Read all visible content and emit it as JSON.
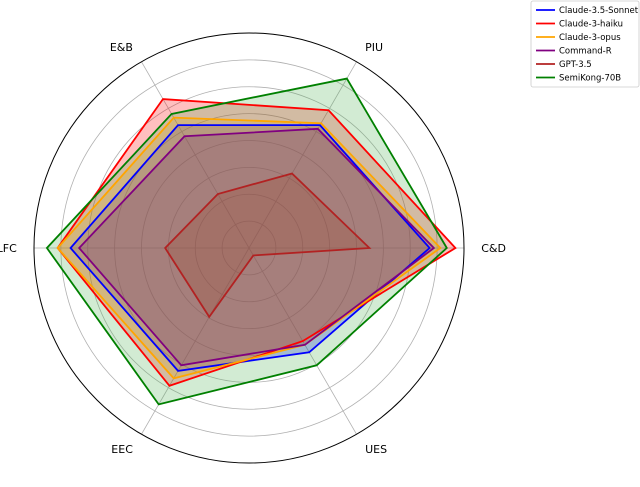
{
  "chart_data": {
    "type": "radar",
    "axes": [
      "C&D",
      "PIU",
      "E&B",
      "LFC",
      "EEC",
      "UES"
    ],
    "rmax": 1.0,
    "grid": true,
    "legend_position": "top-right",
    "series": [
      {
        "name": "Claude-3.5-Sonnet",
        "color": "#0000ff",
        "values": [
          0.84,
          0.66,
          0.66,
          0.83,
          0.66,
          0.56
        ]
      },
      {
        "name": "Claude-3-haiku",
        "color": "#ff0000",
        "values": [
          0.96,
          0.74,
          0.8,
          0.89,
          0.74,
          0.5
        ]
      },
      {
        "name": "Claude-3-opus",
        "color": "#ffa500",
        "values": [
          0.89,
          0.67,
          0.7,
          0.89,
          0.7,
          0.52
        ]
      },
      {
        "name": "Command-R",
        "color": "#800080",
        "values": [
          0.86,
          0.64,
          0.6,
          0.79,
          0.63,
          0.52
        ]
      },
      {
        "name": "GPT-3.5",
        "color": "#b22222",
        "values": [
          0.56,
          0.4,
          0.29,
          0.39,
          0.37,
          0.04
        ]
      },
      {
        "name": "SemiKong-70B",
        "color": "#008000",
        "fill": "#4caf50",
        "values": [
          0.92,
          0.91,
          0.72,
          0.94,
          0.84,
          0.63
        ]
      }
    ]
  }
}
